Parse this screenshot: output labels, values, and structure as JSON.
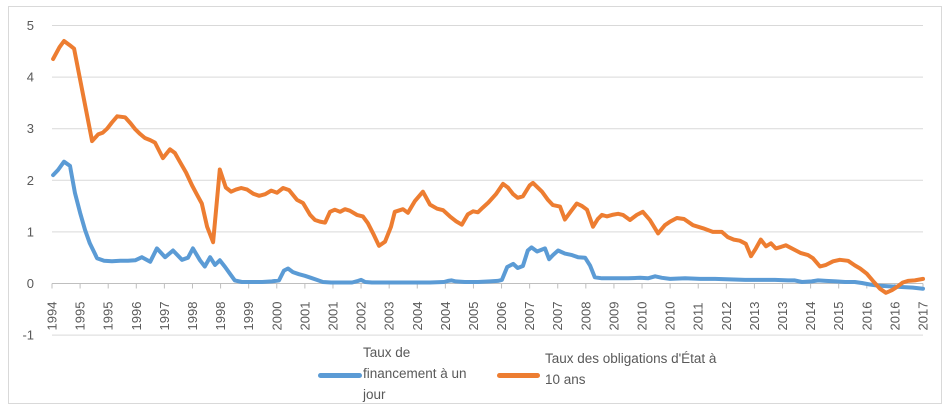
{
  "chart_data": {
    "type": "line",
    "title": "",
    "grid": true,
    "legend_position": "bottom",
    "y_axis": {
      "min": -1,
      "max": 5,
      "tick_step": 1,
      "tick_labels": [
        "5",
        "4",
        "3",
        "2",
        "1",
        "0",
        "-1"
      ]
    },
    "x_axis": {
      "start_year": 1994.25,
      "end_year": 2017.5,
      "label_interval_years": 0.75,
      "tick_labels": [
        "1994",
        "1995",
        "1995",
        "1996",
        "1997",
        "1998",
        "1998",
        "1999",
        "2000",
        "2001",
        "2001",
        "2002",
        "2003",
        "2004",
        "2004",
        "2005",
        "2006",
        "2007",
        "2007",
        "2008",
        "2009",
        "2010",
        "2010",
        "2011",
        "2012",
        "2013",
        "2013",
        "2014",
        "2015",
        "2016",
        "2016",
        "2017"
      ]
    },
    "series": [
      {
        "name": "Taux de financement à un jour",
        "color": "#5B9BD5",
        "points": [
          [
            1994.28,
            2.1
          ],
          [
            1994.41,
            2.2
          ],
          [
            1994.57,
            2.36
          ],
          [
            1994.73,
            2.28
          ],
          [
            1994.86,
            1.76
          ],
          [
            1995.0,
            1.37
          ],
          [
            1995.13,
            1.04
          ],
          [
            1995.26,
            0.78
          ],
          [
            1995.4,
            0.57
          ],
          [
            1995.45,
            0.49
          ],
          [
            1995.64,
            0.44
          ],
          [
            1995.85,
            0.43
          ],
          [
            1996.07,
            0.44
          ],
          [
            1996.28,
            0.44
          ],
          [
            1996.47,
            0.45
          ],
          [
            1996.65,
            0.51
          ],
          [
            1996.87,
            0.42
          ],
          [
            1997.05,
            0.68
          ],
          [
            1997.27,
            0.51
          ],
          [
            1997.48,
            0.64
          ],
          [
            1997.72,
            0.46
          ],
          [
            1997.88,
            0.5
          ],
          [
            1998.01,
            0.68
          ],
          [
            1998.2,
            0.45
          ],
          [
            1998.33,
            0.33
          ],
          [
            1998.47,
            0.51
          ],
          [
            1998.6,
            0.36
          ],
          [
            1998.73,
            0.45
          ],
          [
            1998.87,
            0.32
          ],
          [
            1999.0,
            0.19
          ],
          [
            1999.13,
            0.06
          ],
          [
            1999.32,
            0.03
          ],
          [
            1999.59,
            0.03
          ],
          [
            1999.86,
            0.03
          ],
          [
            2000.12,
            0.04
          ],
          [
            2000.31,
            0.06
          ],
          [
            2000.44,
            0.25
          ],
          [
            2000.55,
            0.29
          ],
          [
            2000.68,
            0.22
          ],
          [
            2000.84,
            0.18
          ],
          [
            2001.0,
            0.15
          ],
          [
            2001.16,
            0.11
          ],
          [
            2001.32,
            0.07
          ],
          [
            2001.48,
            0.03
          ],
          [
            2001.7,
            0.02
          ],
          [
            2001.99,
            0.02
          ],
          [
            2002.26,
            0.02
          ],
          [
            2002.42,
            0.05
          ],
          [
            2002.5,
            0.07
          ],
          [
            2002.61,
            0.03
          ],
          [
            2002.79,
            0.02
          ],
          [
            2003.14,
            0.02
          ],
          [
            2003.54,
            0.02
          ],
          [
            2003.94,
            0.02
          ],
          [
            2004.34,
            0.02
          ],
          [
            2004.71,
            0.03
          ],
          [
            2004.82,
            0.05
          ],
          [
            2004.92,
            0.06
          ],
          [
            2005.03,
            0.04
          ],
          [
            2005.27,
            0.03
          ],
          [
            2005.62,
            0.03
          ],
          [
            2005.94,
            0.04
          ],
          [
            2006.15,
            0.05
          ],
          [
            2006.26,
            0.07
          ],
          [
            2006.4,
            0.32
          ],
          [
            2006.56,
            0.38
          ],
          [
            2006.68,
            0.3
          ],
          [
            2006.82,
            0.34
          ],
          [
            2006.95,
            0.64
          ],
          [
            2007.05,
            0.7
          ],
          [
            2007.2,
            0.62
          ],
          [
            2007.41,
            0.68
          ],
          [
            2007.52,
            0.47
          ],
          [
            2007.62,
            0.55
          ],
          [
            2007.76,
            0.64
          ],
          [
            2007.94,
            0.58
          ],
          [
            2008.13,
            0.55
          ],
          [
            2008.29,
            0.51
          ],
          [
            2008.48,
            0.5
          ],
          [
            2008.61,
            0.35
          ],
          [
            2008.74,
            0.12
          ],
          [
            2008.93,
            0.1
          ],
          [
            2009.28,
            0.1
          ],
          [
            2009.63,
            0.1
          ],
          [
            2009.95,
            0.11
          ],
          [
            2010.16,
            0.1
          ],
          [
            2010.35,
            0.14
          ],
          [
            2010.53,
            0.11
          ],
          [
            2010.75,
            0.09
          ],
          [
            2011.15,
            0.1
          ],
          [
            2011.55,
            0.09
          ],
          [
            2011.95,
            0.09
          ],
          [
            2012.35,
            0.08
          ],
          [
            2012.75,
            0.07
          ],
          [
            2013.15,
            0.07
          ],
          [
            2013.55,
            0.07
          ],
          [
            2013.9,
            0.06
          ],
          [
            2014.08,
            0.06
          ],
          [
            2014.27,
            0.03
          ],
          [
            2014.53,
            0.04
          ],
          [
            2014.7,
            0.06
          ],
          [
            2014.91,
            0.05
          ],
          [
            2015.18,
            0.04
          ],
          [
            2015.42,
            0.03
          ],
          [
            2015.68,
            0.03
          ],
          [
            2015.87,
            0.01
          ],
          [
            2016.08,
            -0.02
          ],
          [
            2016.3,
            -0.04
          ],
          [
            2016.51,
            -0.05
          ],
          [
            2016.75,
            -0.06
          ],
          [
            2016.99,
            -0.07
          ],
          [
            2017.23,
            -0.08
          ],
          [
            2017.5,
            -0.1
          ]
        ]
      },
      {
        "name": "Taux des obligations d'État à 10 ans",
        "color": "#ED7D31",
        "points": [
          [
            1994.28,
            4.35
          ],
          [
            1994.45,
            4.58
          ],
          [
            1994.57,
            4.7
          ],
          [
            1994.72,
            4.62
          ],
          [
            1994.84,
            4.55
          ],
          [
            1995.32,
            2.76
          ],
          [
            1995.48,
            2.89
          ],
          [
            1995.6,
            2.92
          ],
          [
            1995.72,
            3.0
          ],
          [
            1995.85,
            3.12
          ],
          [
            1995.99,
            3.24
          ],
          [
            1996.2,
            3.22
          ],
          [
            1996.35,
            3.1
          ],
          [
            1996.47,
            2.99
          ],
          [
            1996.6,
            2.9
          ],
          [
            1996.73,
            2.82
          ],
          [
            1996.87,
            2.78
          ],
          [
            1997.0,
            2.73
          ],
          [
            1997.21,
            2.43
          ],
          [
            1997.4,
            2.6
          ],
          [
            1997.53,
            2.53
          ],
          [
            1997.67,
            2.35
          ],
          [
            1997.83,
            2.15
          ],
          [
            1997.99,
            1.9
          ],
          [
            1998.12,
            1.72
          ],
          [
            1998.25,
            1.55
          ],
          [
            1998.39,
            1.1
          ],
          [
            1998.55,
            0.8
          ],
          [
            1998.73,
            2.21
          ],
          [
            1998.89,
            1.86
          ],
          [
            1999.03,
            1.78
          ],
          [
            1999.16,
            1.82
          ],
          [
            1999.3,
            1.85
          ],
          [
            1999.46,
            1.82
          ],
          [
            1999.62,
            1.74
          ],
          [
            1999.78,
            1.7
          ],
          [
            1999.94,
            1.73
          ],
          [
            2000.1,
            1.8
          ],
          [
            2000.26,
            1.76
          ],
          [
            2000.42,
            1.85
          ],
          [
            2000.58,
            1.81
          ],
          [
            2000.79,
            1.62
          ],
          [
            2000.95,
            1.56
          ],
          [
            2001.14,
            1.33
          ],
          [
            2001.27,
            1.23
          ],
          [
            2001.4,
            1.2
          ],
          [
            2001.54,
            1.18
          ],
          [
            2001.67,
            1.39
          ],
          [
            2001.8,
            1.43
          ],
          [
            2001.94,
            1.39
          ],
          [
            2002.07,
            1.44
          ],
          [
            2002.2,
            1.41
          ],
          [
            2002.39,
            1.33
          ],
          [
            2002.55,
            1.3
          ],
          [
            2002.68,
            1.17
          ],
          [
            2002.82,
            0.97
          ],
          [
            2002.98,
            0.73
          ],
          [
            2003.14,
            0.81
          ],
          [
            2003.3,
            1.1
          ],
          [
            2003.4,
            1.39
          ],
          [
            2003.62,
            1.44
          ],
          [
            2003.75,
            1.37
          ],
          [
            2003.94,
            1.6
          ],
          [
            2004.15,
            1.78
          ],
          [
            2004.34,
            1.53
          ],
          [
            2004.53,
            1.45
          ],
          [
            2004.69,
            1.42
          ],
          [
            2004.87,
            1.3
          ],
          [
            2005.03,
            1.21
          ],
          [
            2005.19,
            1.14
          ],
          [
            2005.35,
            1.34
          ],
          [
            2005.49,
            1.4
          ],
          [
            2005.62,
            1.38
          ],
          [
            2005.75,
            1.47
          ],
          [
            2005.9,
            1.57
          ],
          [
            2006.1,
            1.73
          ],
          [
            2006.29,
            1.93
          ],
          [
            2006.42,
            1.86
          ],
          [
            2006.56,
            1.73
          ],
          [
            2006.68,
            1.66
          ],
          [
            2006.82,
            1.69
          ],
          [
            2007.0,
            1.9
          ],
          [
            2007.09,
            1.95
          ],
          [
            2007.33,
            1.78
          ],
          [
            2007.49,
            1.62
          ],
          [
            2007.62,
            1.52
          ],
          [
            2007.81,
            1.49
          ],
          [
            2007.94,
            1.24
          ],
          [
            2008.1,
            1.4
          ],
          [
            2008.26,
            1.55
          ],
          [
            2008.4,
            1.5
          ],
          [
            2008.53,
            1.43
          ],
          [
            2008.69,
            1.1
          ],
          [
            2008.82,
            1.25
          ],
          [
            2008.93,
            1.33
          ],
          [
            2009.06,
            1.3
          ],
          [
            2009.2,
            1.33
          ],
          [
            2009.36,
            1.35
          ],
          [
            2009.49,
            1.33
          ],
          [
            2009.68,
            1.23
          ],
          [
            2009.86,
            1.33
          ],
          [
            2010.02,
            1.39
          ],
          [
            2010.21,
            1.23
          ],
          [
            2010.43,
            0.97
          ],
          [
            2010.61,
            1.13
          ],
          [
            2010.75,
            1.2
          ],
          [
            2010.93,
            1.27
          ],
          [
            2011.12,
            1.25
          ],
          [
            2011.36,
            1.13
          ],
          [
            2011.63,
            1.07
          ],
          [
            2011.89,
            1.0
          ],
          [
            2012.13,
            1.0
          ],
          [
            2012.29,
            0.9
          ],
          [
            2012.45,
            0.85
          ],
          [
            2012.61,
            0.83
          ],
          [
            2012.77,
            0.77
          ],
          [
            2012.91,
            0.53
          ],
          [
            2013.04,
            0.68
          ],
          [
            2013.17,
            0.85
          ],
          [
            2013.31,
            0.72
          ],
          [
            2013.44,
            0.78
          ],
          [
            2013.57,
            0.68
          ],
          [
            2013.71,
            0.71
          ],
          [
            2013.84,
            0.74
          ],
          [
            2014.08,
            0.65
          ],
          [
            2014.24,
            0.59
          ],
          [
            2014.43,
            0.55
          ],
          [
            2014.56,
            0.49
          ],
          [
            2014.75,
            0.33
          ],
          [
            2014.91,
            0.36
          ],
          [
            2015.1,
            0.43
          ],
          [
            2015.28,
            0.46
          ],
          [
            2015.5,
            0.44
          ],
          [
            2015.68,
            0.35
          ],
          [
            2015.82,
            0.29
          ],
          [
            2016.0,
            0.19
          ],
          [
            2016.19,
            0.03
          ],
          [
            2016.35,
            -0.1
          ],
          [
            2016.51,
            -0.18
          ],
          [
            2016.67,
            -0.13
          ],
          [
            2016.8,
            -0.07
          ],
          [
            2016.96,
            0.02
          ],
          [
            2017.1,
            0.05
          ],
          [
            2017.28,
            0.06
          ],
          [
            2017.5,
            0.09
          ]
        ]
      }
    ],
    "colors": {
      "gridline": "#D9D9D9",
      "axis_line": "#BFBFBF",
      "tick_text": "#595959",
      "series_overnight": "#5B9BD5",
      "series_bond10y": "#ED7D31"
    }
  },
  "legend": {
    "items": [
      {
        "series": "overnight",
        "lines": [
          "Taux de",
          "financement à un",
          "jour"
        ]
      },
      {
        "series": "bond10y",
        "lines": [
          "Taux des obligations d'État à",
          "10 ans"
        ]
      }
    ]
  }
}
